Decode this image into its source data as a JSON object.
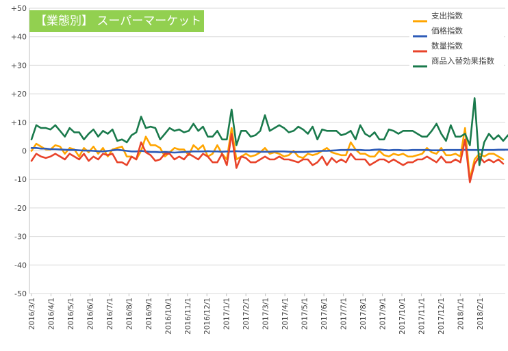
{
  "chart_data": {
    "type": "line",
    "title": "【業態別】 スーパーマーケット",
    "ylim": [
      -50,
      50
    ],
    "yticks": [
      {
        "value": 50,
        "label": "+50"
      },
      {
        "value": 40,
        "label": "+40"
      },
      {
        "value": 30,
        "label": "+30"
      },
      {
        "value": 20,
        "label": "+20"
      },
      {
        "value": 10,
        "label": "+10"
      },
      {
        "value": 0,
        "label": "0"
      },
      {
        "value": -10,
        "label": "-10"
      },
      {
        "value": -20,
        "label": "-20"
      },
      {
        "value": -30,
        "label": "-30"
      },
      {
        "value": -40,
        "label": "-40"
      },
      {
        "value": -50,
        "label": "-50"
      }
    ],
    "grid": true,
    "legend_position": "top-right",
    "x_start": "2016/3/1",
    "x_step": "weekly",
    "xtick_labels": [
      "2016/3/1",
      "2016/4/1",
      "2016/5/1",
      "2016/6/1",
      "2016/7/1",
      "2016/8/1",
      "2016/9/1",
      "2016/10/1",
      "2016/11/1",
      "2016/12/1",
      "2017/1/1",
      "2017/2/1",
      "2017/3/1",
      "2017/4/1",
      "2017/5/1",
      "2017/6/1",
      "2017/7/1",
      "2017/8/1",
      "2017/9/1",
      "2017/10/1",
      "2017/11/1",
      "2017/12/1",
      "2018/1/1",
      "2018/2/1"
    ],
    "series": [
      {
        "name": "支出指数",
        "color": "#ffa500",
        "values": [
          0,
          2.5,
          1.5,
          0.5,
          0.5,
          2,
          1.5,
          -1,
          1,
          0.5,
          -2,
          1,
          -0.5,
          1.5,
          -1,
          1,
          -2,
          0.5,
          1,
          1.5,
          -2,
          -2,
          -3,
          0,
          5,
          2,
          2,
          1,
          -2,
          -0.5,
          1,
          0.5,
          0.5,
          -1.5,
          2,
          0.5,
          2,
          -2,
          -1,
          2,
          -1,
          -3,
          8,
          -3,
          -2,
          -1,
          -2,
          -1.5,
          -0.5,
          1,
          -1,
          -0.5,
          -1,
          -2,
          -1.5,
          0,
          -2,
          -2.5,
          -1,
          -1.5,
          -1,
          0,
          1,
          -0.5,
          -1,
          -1.5,
          -1.5,
          3,
          0.5,
          -1,
          -1,
          -2,
          -2,
          0,
          -1.5,
          -2,
          -1,
          -1.5,
          -1,
          -2,
          -2,
          -1.5,
          -1,
          1,
          -0.5,
          -1,
          1,
          -1.5,
          -1.5,
          -1,
          -2,
          8,
          -10,
          -3,
          -1,
          -2,
          -1,
          -1,
          -2,
          -3
        ]
      },
      {
        "name": "価格指数",
        "color": "#2e5cb8",
        "values": [
          1,
          1,
          0.8,
          0.8,
          0.6,
          0.6,
          0.5,
          0.4,
          0.3,
          0.3,
          0.2,
          0.1,
          0.1,
          0,
          -0.1,
          -0.2,
          0,
          0.2,
          0.4,
          0.2,
          0,
          -0.2,
          -0.2,
          0,
          -0.2,
          -0.4,
          -0.4,
          -0.5,
          -0.4,
          -0.5,
          -0.6,
          -0.5,
          -0.4,
          -0.3,
          -0.2,
          -0.2,
          -0.2,
          -0.1,
          -0.2,
          -0.2,
          -0.3,
          -0.2,
          -0.2,
          -0.1,
          -0.2,
          -0.2,
          -0.2,
          -0.2,
          -0.3,
          -0.3,
          -0.3,
          -0.2,
          -0.2,
          -0.2,
          -0.3,
          -0.4,
          -0.4,
          -0.4,
          -0.3,
          -0.2,
          -0.1,
          0,
          0,
          0.1,
          0.2,
          0.3,
          0.3,
          0.4,
          0.3,
          0.3,
          0.2,
          0.2,
          0.4,
          0.5,
          0.3,
          0.2,
          0.3,
          0.3,
          0.2,
          0.2,
          0.3,
          0.3,
          0.3,
          0.3,
          0.2,
          0.2,
          0.2,
          0.3,
          0.3,
          0.3,
          0.3,
          0.4,
          0.3,
          0.3,
          0.3,
          0.3,
          0.3,
          0.3,
          0.4,
          0.4,
          0.4
        ]
      },
      {
        "name": "数量指数",
        "color": "#e8432a",
        "values": [
          -3.5,
          -1,
          -2,
          -2.5,
          -2,
          -1,
          -2,
          -3,
          -1,
          -2,
          -3,
          -1,
          -3.5,
          -2,
          -3,
          -1,
          -1.5,
          -1,
          -4,
          -4,
          -5,
          -2,
          -3,
          3,
          -0.5,
          -1.5,
          -3.5,
          -3,
          -1,
          -1,
          -3,
          -2,
          -3,
          -1,
          -2,
          -3,
          -1,
          -2,
          -4,
          -4,
          -1,
          -5,
          6,
          -6,
          -2,
          -2.5,
          -4,
          -4,
          -3,
          -2,
          -3,
          -3,
          -2,
          -3,
          -3,
          -3.5,
          -4,
          -3,
          -3,
          -5,
          -4,
          -2,
          -5,
          -2.5,
          -4,
          -3,
          -4,
          -1,
          -3,
          -3,
          -3,
          -5,
          -4,
          -3,
          -3,
          -4,
          -3,
          -4,
          -5,
          -4,
          -4,
          -3,
          -3,
          -2,
          -3,
          -4,
          -2,
          -4,
          -4,
          -3,
          -4,
          4,
          -11,
          -4.5,
          -2,
          -4,
          -3,
          -4,
          -3,
          -4.5
        ]
      },
      {
        "name": "商品入替効果指数",
        "color": "#1a7a4c",
        "values": [
          4,
          9,
          8,
          8,
          7.5,
          9,
          7,
          5,
          8,
          6.5,
          6.5,
          4,
          6,
          7.5,
          5,
          7,
          6,
          7.5,
          3.5,
          4,
          3,
          5.5,
          6.5,
          12,
          8,
          8.5,
          8,
          4,
          6,
          8,
          7,
          7.5,
          6.5,
          7,
          9.5,
          7,
          8.5,
          5,
          5,
          7,
          4,
          4,
          14.5,
          2,
          7,
          7,
          5,
          5.5,
          7,
          12.5,
          7,
          8,
          9,
          8,
          6.5,
          7,
          8.5,
          7.5,
          6,
          8.5,
          4,
          7.5,
          7,
          7,
          7,
          5.5,
          6,
          7,
          4,
          9,
          6,
          5,
          6.5,
          4,
          4,
          7.5,
          7,
          6,
          7,
          7,
          7,
          6,
          5,
          5,
          7,
          9.5,
          6,
          3.5,
          9,
          5,
          5,
          6,
          2,
          18.5,
          -5,
          3,
          6,
          4,
          5.5,
          3.5,
          5.5
        ]
      }
    ]
  }
}
